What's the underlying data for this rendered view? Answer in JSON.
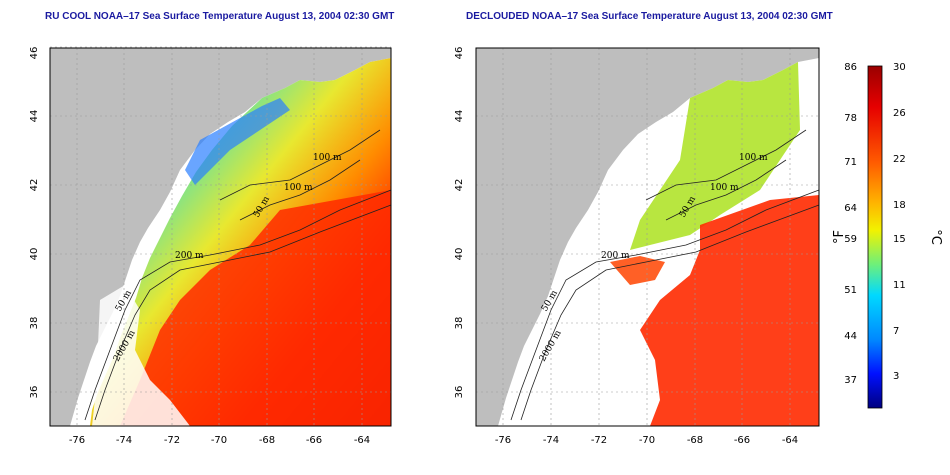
{
  "panels": [
    {
      "title": "RU COOL NOAA–17 Sea Surface Temperature August 13, 2004 02:30 GMT"
    },
    {
      "title": "DECLOUDED NOAA–17 Sea Surface Temperature August 13, 2004 02:30 GMT"
    }
  ],
  "axes": {
    "lon_ticks": [
      "-76",
      "-74",
      "-72",
      "-70",
      "-68",
      "-66",
      "-64"
    ],
    "lat_ticks": [
      "46",
      "44",
      "42",
      "40",
      "38",
      "36"
    ]
  },
  "contour_labels": [
    "100 m",
    "100 m",
    "50 m",
    "200 m",
    "50 m",
    "2000 m"
  ],
  "colorbar": {
    "fahrenheit_ticks": [
      "86",
      "78",
      "71",
      "64",
      "59",
      "51",
      "44",
      "37"
    ],
    "celsius_ticks": [
      "30",
      "26",
      "22",
      "18",
      "15",
      "11",
      "7",
      "3"
    ],
    "fahrenheit_unit": "°F",
    "celsius_unit": "°C",
    "colors": [
      "#ff0000",
      "#ff2a00",
      "#ff7a00",
      "#ffc400",
      "#ffff00",
      "#7fff50",
      "#00e5ff",
      "#0070ff",
      "#0000ff",
      "#00007a"
    ]
  },
  "colors": {
    "land": "#bebebe",
    "title": "#1a1aa0",
    "grid": "#9a9a9a",
    "contour": "#222222"
  }
}
